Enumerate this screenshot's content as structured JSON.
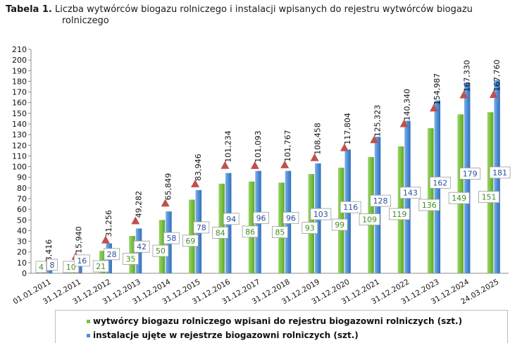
{
  "title": {
    "label": "Tabela 1.",
    "text_line1": "Liczba wytwórców biogazu rolniczego i instalacji wpisanych do rejestru wytwórców biogazu",
    "text_line2": "rolniczego"
  },
  "legend": [
    {
      "label": "wytwórcy biogazu rolniczego wpisani do rejestru biogazowni rolniczych (szt.)",
      "color": "#7ac142"
    },
    {
      "label": "instalacje ujęte w rejestrze biogazowni rolniczych (szt.)",
      "color": "#4f8fd6"
    }
  ],
  "chart_data": {
    "type": "bar",
    "categories": [
      "01.01.2011",
      "31.12.2011",
      "31.12.2012",
      "31.12.2013",
      "31.12.2014",
      "31.12.2015",
      "31.12.2016",
      "31.12.2017",
      "31.12.2018",
      "31.12.2019",
      "31.12.2020",
      "31.12.2021",
      "31.12.2022",
      "31.12.2023",
      "31.12.2024",
      "24.03.2025"
    ],
    "series": [
      {
        "name": "wytwórcy biogazu rolniczego wpisani do rejestru biogazowni rolniczych (szt.)",
        "color": "#7ac142",
        "values": [
          4,
          10,
          21,
          35,
          50,
          69,
          84,
          86,
          85,
          93,
          99,
          109,
          119,
          136,
          149,
          151
        ]
      },
      {
        "name": "instalacje ujęte w rejestrze biogazowni rolniczych (szt.)",
        "color": "#4f8fd6",
        "values": [
          8,
          16,
          28,
          42,
          58,
          78,
          94,
          96,
          96,
          103,
          116,
          128,
          143,
          162,
          179,
          181
        ]
      }
    ],
    "capacity_labels": [
      "8,416",
      "15,940",
      "31,256",
      "49,282",
      "65,849",
      "83,946",
      "101,234",
      "101,093",
      "101,767",
      "108,458",
      "117,804",
      "125,323",
      "140,340",
      "154,987",
      "167,330",
      "167,760"
    ],
    "capacity_values": [
      8.416,
      15.94,
      31.256,
      49.282,
      65.849,
      83.946,
      101.234,
      101.093,
      101.767,
      108.458,
      117.804,
      125.323,
      140.34,
      154.987,
      167.33,
      167.76
    ],
    "capacity_marker_color": "#c0504d",
    "yticks": [
      0,
      10,
      20,
      30,
      40,
      50,
      60,
      70,
      80,
      90,
      100,
      110,
      120,
      130,
      140,
      150,
      160,
      170,
      180,
      190,
      200,
      210
    ],
    "ylim": [
      0,
      210
    ],
    "grid": false,
    "legend_position": "bottom"
  }
}
